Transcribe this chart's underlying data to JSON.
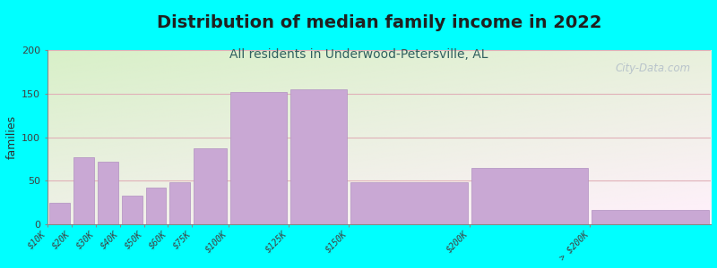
{
  "title": "Distribution of median family income in 2022",
  "subtitle": "All residents in Underwood-Petersville, AL",
  "ylabel": "families",
  "categories": [
    "$10K",
    "$20K",
    "$30K",
    "$40K",
    "$50K",
    "$60K",
    "$75K",
    "$100K",
    "$125K",
    "$150K",
    "$200K",
    "> $200K"
  ],
  "values": [
    25,
    77,
    72,
    33,
    42,
    48,
    87,
    152,
    155,
    48,
    65,
    17
  ],
  "widths": [
    10,
    10,
    10,
    10,
    10,
    10,
    15,
    25,
    25,
    50,
    50,
    50
  ],
  "lefts": [
    0,
    10,
    20,
    30,
    40,
    50,
    60,
    75,
    100,
    125,
    175,
    225
  ],
  "bar_color": "#c9a8d4",
  "bar_edge_color": "#b090c0",
  "background_color": "#00ffff",
  "plot_bg_left_top": "#d8f0c8",
  "plot_bg_right_top": "#e8f0dc",
  "plot_bg_bottom": "#f0f0e8",
  "grid_color": "#e0b0b8",
  "ylim": [
    0,
    200
  ],
  "yticks": [
    0,
    50,
    100,
    150,
    200
  ],
  "title_fontsize": 14,
  "subtitle_fontsize": 10,
  "subtitle_color": "#306060",
  "watermark": "City-Data.com",
  "watermark_color": "#b0bcc8"
}
